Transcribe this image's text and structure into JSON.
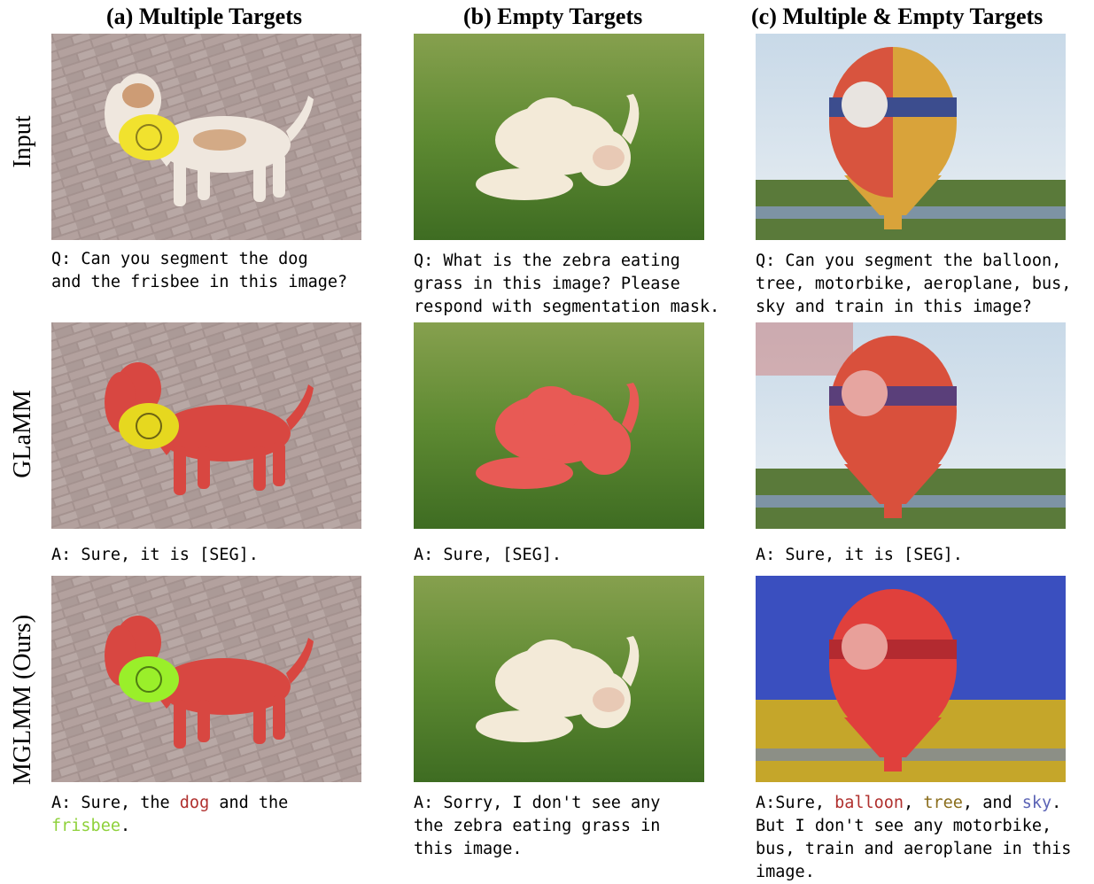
{
  "columns": {
    "a": "(a) Multiple Targets",
    "b": "(b) Empty Targets",
    "c": "(c) Multiple & Empty Targets"
  },
  "rows": {
    "input": "Input",
    "glamm": "GLaMM",
    "mglmm": "MGLMM (Ours)"
  },
  "captions": {
    "a_q": "Q: Can you segment the dog\nand the frisbee in this image?",
    "b_q": "Q: What is the zebra eating\ngrass in this image? Please\nrespond with segmentation mask.",
    "c_q": "Q: Can you segment the balloon,\ntree, motorbike, aeroplane, bus,\nsky and train in this image?",
    "a_glamm": "A: Sure, it is [SEG].",
    "b_glamm": "A: Sure, [SEG].",
    "c_glamm": "A: Sure, it is [SEG].",
    "a_ours_1": "A: Sure, the ",
    "a_ours_dog": "dog",
    "a_ours_2": " and the",
    "a_ours_frisbee": "frisbee",
    "a_ours_3": ".",
    "b_ours": "A: Sorry, I don't see any\nthe zebra eating grass in\nthis image.",
    "c_ours_1": "A:Sure, ",
    "c_ours_balloon": "balloon",
    "c_ours_2": ", ",
    "c_ours_tree": "tree",
    "c_ours_3": ", and ",
    "c_ours_sky": "sky",
    "c_ours_4": ".",
    "c_ours_rest": "But I don't see any motorbike,\nbus, train and aeroplane in this\nimage."
  },
  "colors": {
    "dog_mask": "#e0403c",
    "frisbee_mask": "#9aef2a",
    "balloon_mask": "#e0403c",
    "tree_mask": "#c9a81c",
    "sky_mask": "#3a4fd6"
  }
}
